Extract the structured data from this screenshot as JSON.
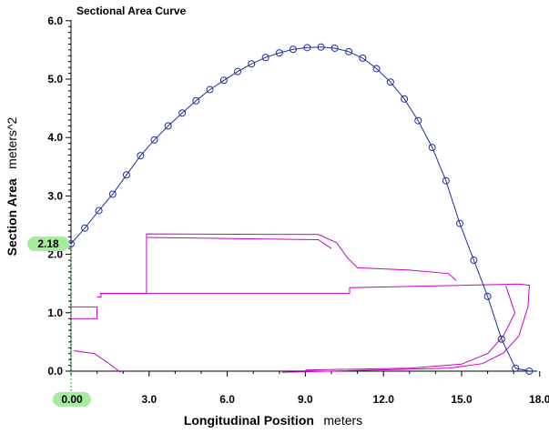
{
  "chart_data": {
    "type": "line",
    "title": "Sectional Area Curve",
    "xlabel": "Longitudinal Position",
    "xunit": "meters",
    "ylabel": "Section Area",
    "yunit": "meters^2",
    "xlim": [
      0,
      18.6
    ],
    "ylim": [
      0,
      6.0
    ],
    "xticks": [
      "0.00",
      "3.0",
      "6.0",
      "9.0",
      "12.0",
      "15.0",
      "18.0"
    ],
    "yticks": [
      "0.0",
      "1.0",
      "2.0",
      "3.0",
      "4.0",
      "5.0",
      "6.0"
    ],
    "cursor": {
      "x_label": "0.00",
      "y_label": "2.18",
      "x": 0.0,
      "y": 2.18
    },
    "grid": false,
    "colors": {
      "curve": "#1f2fa0",
      "profile": "#cc00cc",
      "cursor_fill": "#a8eaa0",
      "axis": "#000000"
    },
    "series": [
      {
        "values_x": [
          0.0,
          0.53,
          1.07,
          1.6,
          2.13,
          2.67,
          3.2,
          3.73,
          4.27,
          4.8,
          5.33,
          5.87,
          6.4,
          6.93,
          7.47,
          8.0,
          8.53,
          9.07,
          9.6,
          10.13,
          10.67,
          11.2,
          11.73,
          12.27,
          12.8,
          13.33,
          13.87,
          14.4,
          14.93,
          15.47,
          16.0,
          16.53,
          17.07,
          17.6
        ],
        "values_y": [
          2.18,
          2.45,
          2.75,
          3.03,
          3.36,
          3.69,
          3.96,
          4.2,
          4.42,
          4.63,
          4.82,
          4.98,
          5.13,
          5.26,
          5.37,
          5.45,
          5.51,
          5.54,
          5.55,
          5.53,
          5.47,
          5.36,
          5.18,
          4.95,
          4.66,
          4.29,
          3.83,
          3.26,
          2.53,
          1.9,
          1.28,
          0.55,
          0.05,
          0.0
        ]
      }
    ],
    "profile_lines": [
      [
        [
          0.0,
          1.1
        ],
        [
          1.0,
          1.1
        ],
        [
          1.0,
          0.9
        ],
        [
          0.0,
          0.9
        ]
      ],
      [
        [
          1.0,
          1.27
        ],
        [
          1.15,
          1.27
        ],
        [
          1.15,
          1.33
        ],
        [
          2.9,
          1.33
        ],
        [
          2.9,
          2.35
        ],
        [
          9.5,
          2.34
        ],
        [
          10.2,
          2.2
        ],
        [
          10.6,
          1.95
        ],
        [
          11.0,
          1.77
        ],
        [
          13.0,
          1.73
        ],
        [
          14.5,
          1.67
        ],
        [
          14.8,
          1.55
        ]
      ],
      [
        [
          2.9,
          2.29
        ],
        [
          9.5,
          2.25
        ],
        [
          10.0,
          2.1
        ]
      ],
      [
        [
          1.1,
          1.33
        ],
        [
          10.7,
          1.33
        ],
        [
          10.7,
          1.43
        ],
        [
          17.2,
          1.49
        ],
        [
          17.6,
          1.47
        ],
        [
          17.55,
          1.1
        ],
        [
          17.2,
          0.6
        ],
        [
          16.6,
          0.31
        ],
        [
          15.8,
          0.13
        ],
        [
          14.5,
          0.05
        ],
        [
          8.1,
          -0.02
        ]
      ],
      [
        [
          16.7,
          1.46
        ],
        [
          17.05,
          1.0
        ],
        [
          16.6,
          0.6
        ],
        [
          16.0,
          0.3
        ],
        [
          15.0,
          0.12
        ],
        [
          13.0,
          0.05
        ],
        [
          9.0,
          0.02
        ]
      ],
      [
        [
          0.1,
          0.35
        ],
        [
          0.9,
          0.3
        ],
        [
          1.4,
          0.15
        ],
        [
          1.9,
          -0.02
        ]
      ]
    ]
  }
}
